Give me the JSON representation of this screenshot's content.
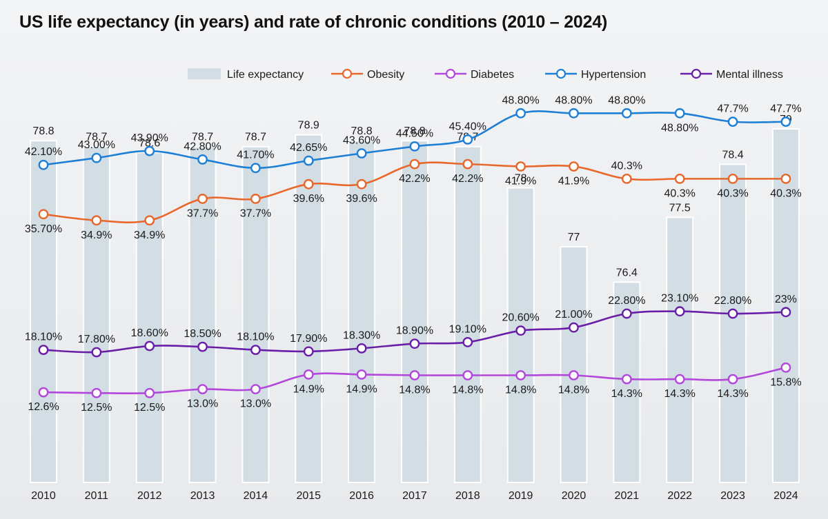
{
  "colors": {
    "bar": "#d3dde4",
    "bar_stroke": "#ffffff",
    "obesity": "#e8672a",
    "diabetes": "#b347dc",
    "hypertension": "#1d7fd6",
    "mental_illness": "#6a1ea8",
    "text": "#1a1a1a"
  },
  "chart_data": {
    "type": "bar+line",
    "title": "US life expectancy (in years) and rate of chronic conditions (2010 – 2024)",
    "legend_position": "top-right",
    "grid": false,
    "categories": [
      "2010",
      "2011",
      "2012",
      "2013",
      "2014",
      "2015",
      "2016",
      "2017",
      "2018",
      "2019",
      "2020",
      "2021",
      "2022",
      "2023",
      "2024"
    ],
    "bar_series": {
      "name": "Life expectancy",
      "values": [
        78.8,
        78.7,
        78.6,
        78.7,
        78.7,
        78.9,
        78.8,
        78.8,
        78.7,
        78.0,
        77.0,
        76.4,
        77.5,
        78.4,
        79.0
      ],
      "labels": [
        "78.8",
        "78.7",
        "78.6",
        "78.7",
        "78.7",
        "78.9",
        "78.8",
        "78.8",
        "78.7",
        "78",
        "77",
        "76.4",
        "77.5",
        "78.4",
        "79"
      ],
      "ylim": [
        73,
        79.2
      ]
    },
    "line_ylim": [
      0,
      55
    ],
    "line_series": [
      {
        "name": "Obesity",
        "key": "obesity",
        "values": [
          35.7,
          34.9,
          34.9,
          37.7,
          37.7,
          39.6,
          39.6,
          42.2,
          42.2,
          41.9,
          41.9,
          40.3,
          40.3,
          40.3,
          40.3
        ],
        "labels": [
          "35.70%",
          "34.9%",
          "34.9%",
          "37.7%",
          "37.7%",
          "39.6%",
          "39.6%",
          "42.2%",
          "42.2%",
          "41.9%",
          "41.9%",
          "40.3%",
          "40.3%",
          "40.3%",
          "40.3%"
        ],
        "label_pos": [
          "below",
          "below",
          "below",
          "below",
          "below",
          "below",
          "below",
          "below",
          "below",
          "below",
          "below",
          "above",
          "below",
          "below",
          "below"
        ]
      },
      {
        "name": "Diabetes",
        "key": "diabetes",
        "values": [
          12.6,
          12.5,
          12.5,
          13.0,
          13.0,
          14.9,
          14.9,
          14.8,
          14.8,
          14.8,
          14.8,
          14.3,
          14.3,
          14.3,
          15.8
        ],
        "labels": [
          "12.6%",
          "12.5%",
          "12.5%",
          "13.0%",
          "13.0%",
          "14.9%",
          "14.9%",
          "14.8%",
          "14.8%",
          "14.8%",
          "14.8%",
          "14.3%",
          "14.3%",
          "14.3%",
          "15.8%"
        ],
        "label_pos": [
          "below",
          "below",
          "below",
          "below",
          "below",
          "below",
          "below",
          "below",
          "below",
          "below",
          "below",
          "below",
          "below",
          "below",
          "below"
        ]
      },
      {
        "name": "Hypertension",
        "key": "hypertension",
        "values": [
          42.1,
          43.0,
          43.9,
          42.8,
          41.7,
          42.65,
          43.6,
          44.5,
          45.4,
          48.8,
          48.8,
          48.8,
          48.8,
          47.7,
          47.7
        ],
        "labels": [
          "42.10%",
          "43.00%",
          "43.90%",
          "42.80%",
          "41.70%",
          "42.65%",
          "43.60%",
          "44.50%",
          "45.40%",
          "48.80%",
          "48.80%",
          "48.80%",
          "48.80%",
          "47.7%",
          "47.7%"
        ],
        "label_pos": [
          "above",
          "above",
          "above",
          "above",
          "above",
          "above",
          "above",
          "above",
          "above",
          "above",
          "above",
          "above",
          "below",
          "above",
          "above"
        ]
      },
      {
        "name": "Mental illness",
        "key": "mental_illness",
        "values": [
          18.1,
          17.8,
          18.6,
          18.5,
          18.1,
          17.9,
          18.3,
          18.9,
          19.1,
          20.6,
          21.0,
          22.8,
          23.1,
          22.8,
          23.0
        ],
        "labels": [
          "18.10%",
          "17.80%",
          "18.60%",
          "18.50%",
          "18.10%",
          "17.90%",
          "18.30%",
          "18.90%",
          "19.10%",
          "20.60%",
          "21.00%",
          "22.80%",
          "23.10%",
          "22.80%",
          "23%"
        ],
        "label_pos": [
          "above",
          "above",
          "above",
          "above",
          "above",
          "above",
          "above",
          "above",
          "above",
          "above",
          "above",
          "above",
          "above",
          "above",
          "above"
        ]
      }
    ]
  }
}
